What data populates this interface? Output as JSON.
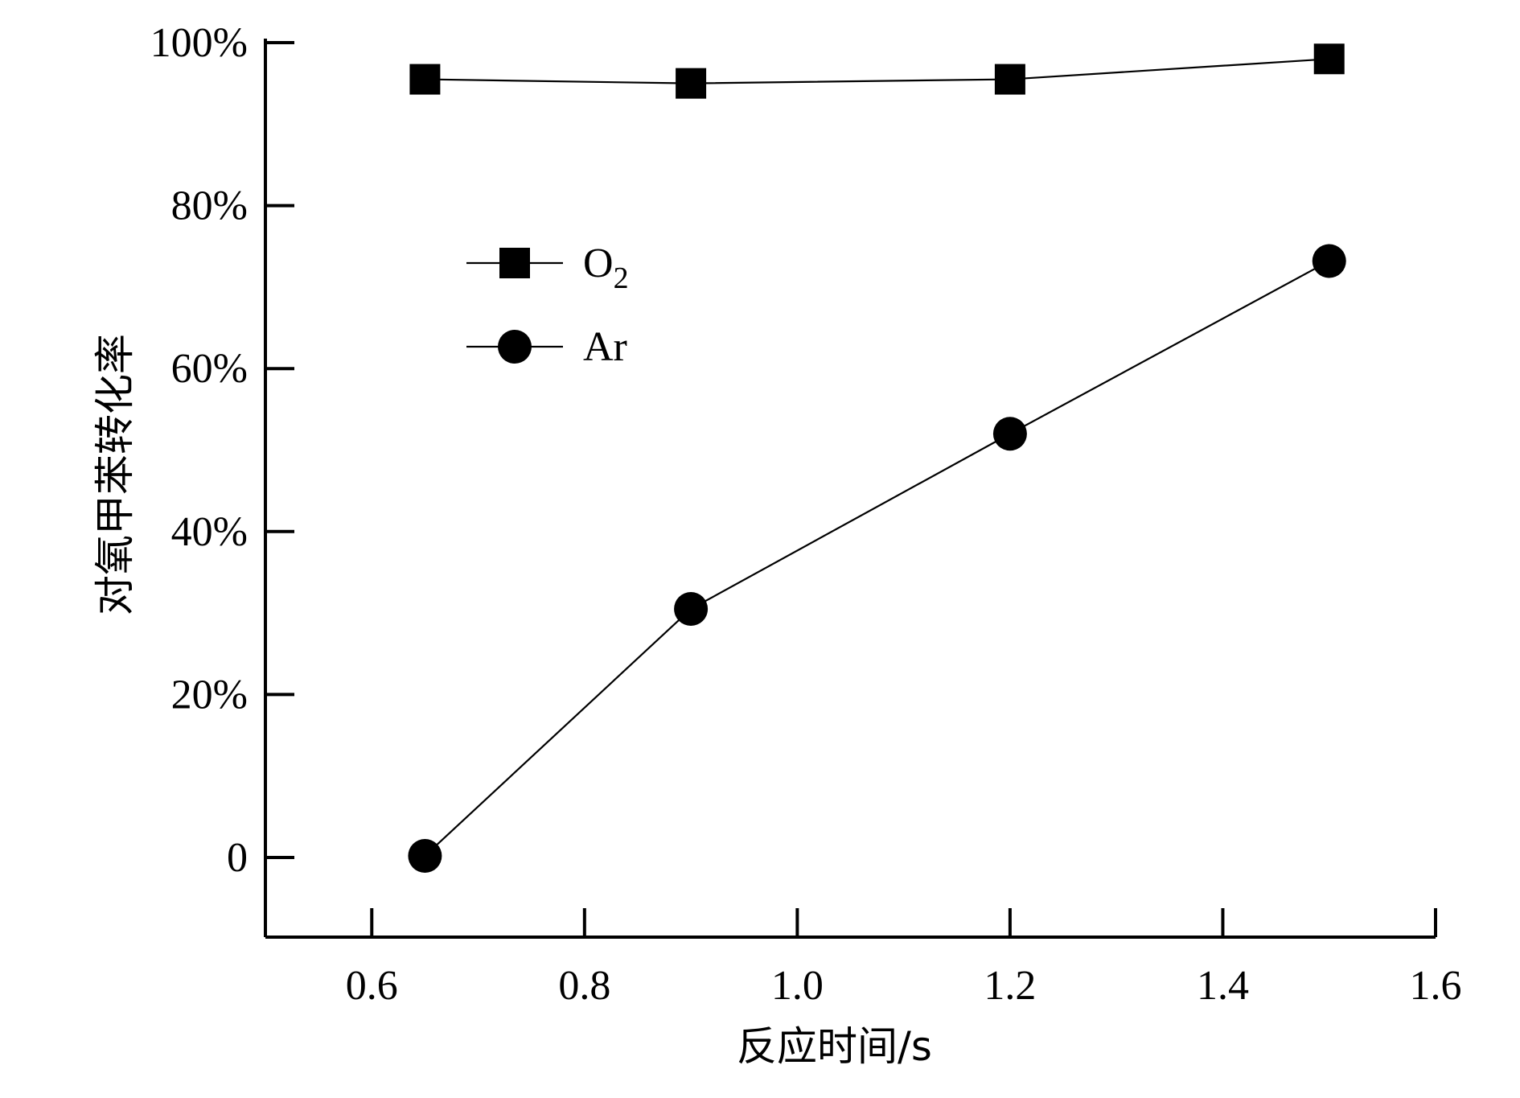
{
  "chart_data": {
    "type": "line",
    "title": "",
    "xlabel": "反应时间/s",
    "ylabel": "对氧甲苯转化率",
    "xlim": [
      0.5,
      1.6
    ],
    "ylim": [
      -10,
      100
    ],
    "x_ticks": [
      {
        "value": 0.6,
        "label": "0.6"
      },
      {
        "value": 0.8,
        "label": "0.8"
      },
      {
        "value": 1.0,
        "label": "1.0"
      },
      {
        "value": 1.2,
        "label": "1.2"
      },
      {
        "value": 1.4,
        "label": "1.4"
      },
      {
        "value": 1.6,
        "label": "1.6"
      }
    ],
    "y_ticks": [
      {
        "value": 0,
        "label": "0"
      },
      {
        "value": 20,
        "label": "20%"
      },
      {
        "value": 40,
        "label": "40%"
      },
      {
        "value": 60,
        "label": "60%"
      },
      {
        "value": 80,
        "label": "80%"
      },
      {
        "value": 100,
        "label": "100%"
      }
    ],
    "series": [
      {
        "name": "O2",
        "name_main": "O",
        "name_sub": "2",
        "marker": "square",
        "color": "#000000",
        "x": [
          0.65,
          0.9,
          1.2,
          1.5
        ],
        "y": [
          95.5,
          95.0,
          95.5,
          98.0
        ]
      },
      {
        "name": "Ar",
        "name_main": "Ar",
        "name_sub": "",
        "marker": "circle",
        "color": "#000000",
        "x": [
          0.65,
          0.9,
          1.2,
          1.5
        ],
        "y": [
          0.2,
          30.5,
          52.0,
          73.2
        ]
      }
    ],
    "legend": {
      "position": "upper-left"
    },
    "grid": false
  }
}
